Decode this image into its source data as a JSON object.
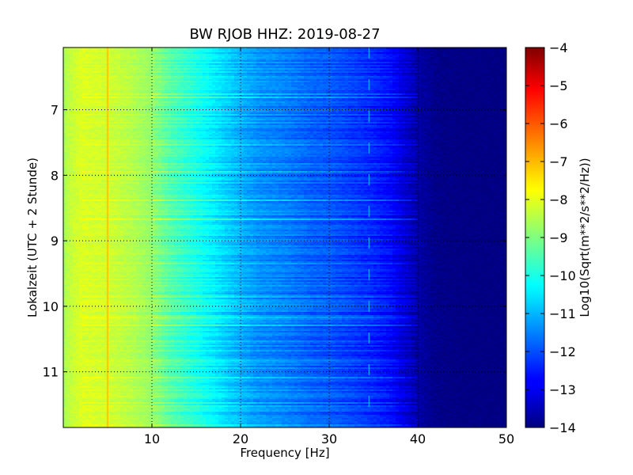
{
  "chart_data": {
    "type": "heatmap",
    "title": "BW RJOB HHZ: 2019-08-27",
    "xlabel": "Frequency [Hz]",
    "ylabel": "Lokalzeit (UTC + 2 Stunde)",
    "colorbar_label": "Log10(Sqrt(m**2/s**2/Hz))",
    "colormap": "jet",
    "x_range": [
      0,
      50
    ],
    "y_range": [
      6.05,
      11.85
    ],
    "y_inverted": true,
    "c_range": [
      -14,
      -4
    ],
    "x_ticks": [
      10,
      20,
      30,
      40,
      50
    ],
    "y_ticks": [
      7,
      8,
      9,
      10,
      11
    ],
    "c_ticks": [
      -4,
      -5,
      -6,
      -7,
      -8,
      -9,
      -10,
      -11,
      -12,
      -13,
      -14
    ],
    "grid": true,
    "grid_style": "dotted",
    "spectrum_profile": {
      "frequency": [
        0,
        1,
        2,
        5,
        8,
        10,
        12,
        15,
        18,
        20,
        22,
        25,
        28,
        30,
        32,
        35,
        37,
        38,
        40,
        42,
        45,
        50
      ],
      "log10_amplitude": [
        -8.6,
        -8.3,
        -8.1,
        -8.2,
        -8.5,
        -8.8,
        -9.4,
        -10.0,
        -10.6,
        -11.0,
        -11.3,
        -11.5,
        -11.8,
        -11.9,
        -12.1,
        -12.4,
        -12.7,
        -13.0,
        -13.6,
        -13.9,
        -14.0,
        -14.0
      ]
    },
    "features": [
      {
        "label": "persistent line",
        "frequency": 5.0,
        "log10_amplitude": -7.2
      },
      {
        "label": "intermittent line",
        "frequency": 34.5,
        "log10_amplitude": -11.0
      }
    ]
  }
}
